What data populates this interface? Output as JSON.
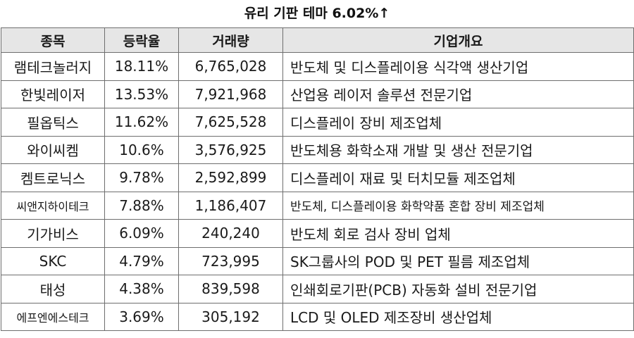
{
  "title": "유리 기판 테마 6.02%↑",
  "table": {
    "headers": [
      "종목",
      "등락율",
      "거래량",
      "기업개요"
    ],
    "rows": [
      {
        "name": "램테크놀러지",
        "rate": "18.11%",
        "volume": "6,765,028",
        "desc": "반도체 및 디스플레이용 식각액 생산기업"
      },
      {
        "name": "한빛레이저",
        "rate": "13.53%",
        "volume": "7,921,968",
        "desc": "산업용 레이저 솔루션 전문기업"
      },
      {
        "name": "필옵틱스",
        "rate": "11.62%",
        "volume": "7,625,528",
        "desc": "디스플레이 장비 제조업체"
      },
      {
        "name": "와이씨켐",
        "rate": "10.6%",
        "volume": "3,576,925",
        "desc": "반도체용 화학소재 개발 및 생산 전문기업"
      },
      {
        "name": "켐트로닉스",
        "rate": "9.78%",
        "volume": "2,592,899",
        "desc": "디스플레이 재료 및 터치모듈 제조업체"
      },
      {
        "name": "씨앤지하이테크",
        "rate": "7.88%",
        "volume": "1,186,407",
        "desc": "반도체, 디스플레이용 화학약품 혼합 장비 제조업체"
      },
      {
        "name": "기가비스",
        "rate": "6.09%",
        "volume": "240,240",
        "desc": "반도체 회로 검사 장비 업체"
      },
      {
        "name": "SKC",
        "rate": "4.79%",
        "volume": "723,995",
        "desc": "SK그룹사의 POD 및 PET 필름 제조업체"
      },
      {
        "name": "태성",
        "rate": "4.38%",
        "volume": "839,598",
        "desc": "인쇄회로기판(PCB)  자동화 설비 전문기업"
      },
      {
        "name": "에프엔에스테크",
        "rate": "3.69%",
        "volume": "305,192",
        "desc": "LCD 및 OLED 제조장비 생산업체"
      }
    ]
  }
}
